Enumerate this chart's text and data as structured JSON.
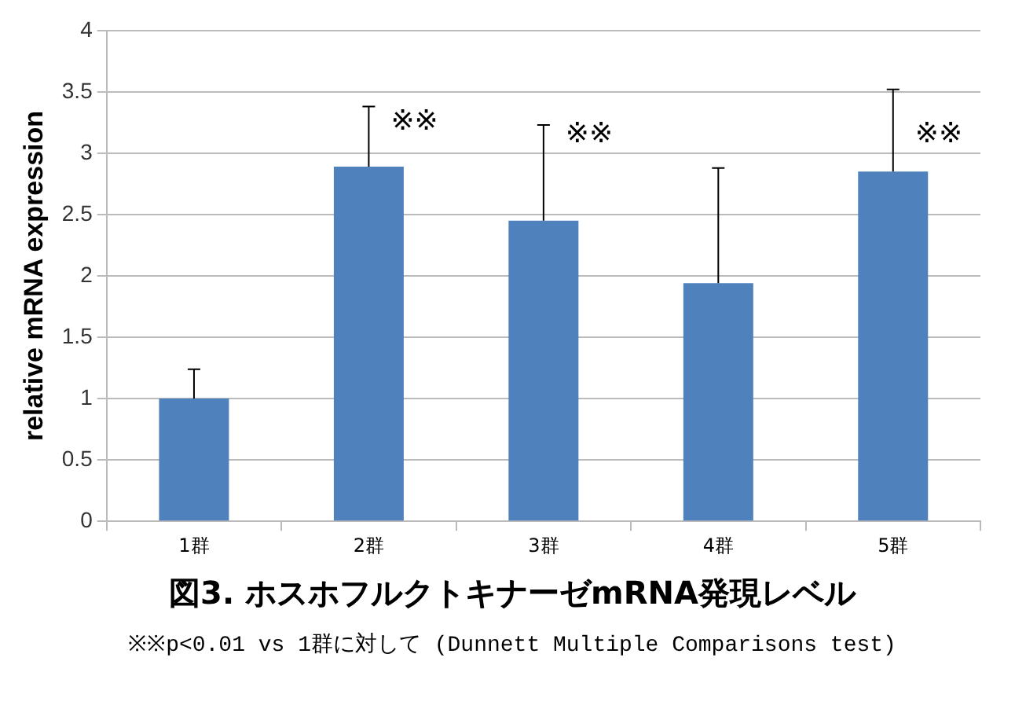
{
  "chart_data": {
    "type": "bar",
    "title": "図3. ホスホフルクトキナーゼmRNA発現レベル",
    "ylabel": "relative mRNA expression",
    "categories": [
      "1群",
      "2群",
      "3群",
      "4群",
      "5群"
    ],
    "values": [
      1.0,
      2.89,
      2.45,
      1.94,
      2.85
    ],
    "errors": [
      0.24,
      0.49,
      0.78,
      0.94,
      0.67
    ],
    "color": "#4f81bd",
    "ylim": [
      0,
      4
    ],
    "yticks": [
      0,
      0.5,
      1,
      1.5,
      2,
      2.5,
      3,
      3.5,
      4
    ],
    "grid": "y",
    "legend": false,
    "annotations": [
      {
        "text": "※※",
        "x": "2群",
        "y": 3.25
      },
      {
        "text": "※※",
        "x": "3群",
        "y": 3.15
      },
      {
        "text": "※※",
        "x": "5群",
        "y": 3.15
      },
      "※※p<0.01 vs 1群に対して (Dunnett Multiple Comparisons test)"
    ]
  }
}
